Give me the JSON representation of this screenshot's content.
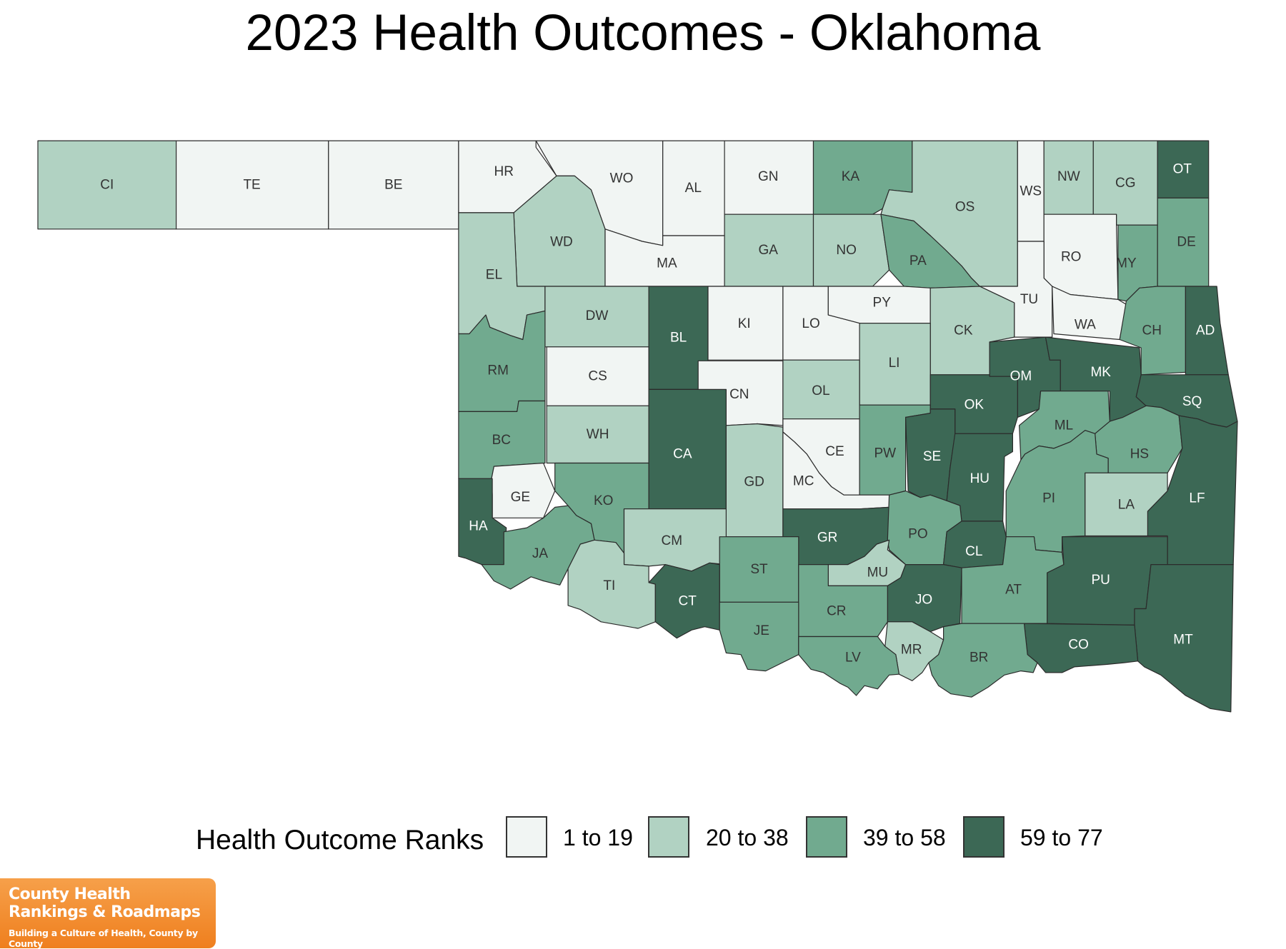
{
  "title": "2023 Health Outcomes - Oklahoma",
  "legend": {
    "title": "Health Outcome Ranks",
    "items": [
      {
        "label": "1 to 19",
        "color": "#f1f5f3"
      },
      {
        "label": "20 to 38",
        "color": "#b1d2c2"
      },
      {
        "label": "39 to 58",
        "color": "#71aa8f"
      },
      {
        "label": "59 to 77",
        "color": "#3c6855"
      }
    ]
  },
  "logo": {
    "line1": "County Health",
    "line2": "Rankings & Roadmaps",
    "tagline": "Building a Culture of Health, County by County"
  },
  "counties": [
    {
      "label": "CI",
      "tier": 1
    },
    {
      "label": "TE",
      "tier": 0
    },
    {
      "label": "BE",
      "tier": 0
    },
    {
      "label": "HR",
      "tier": 0
    },
    {
      "label": "WO",
      "tier": 0
    },
    {
      "label": "AL",
      "tier": 0
    },
    {
      "label": "GN",
      "tier": 0
    },
    {
      "label": "KA",
      "tier": 2
    },
    {
      "label": "OS",
      "tier": 1
    },
    {
      "label": "WS",
      "tier": 0
    },
    {
      "label": "NW",
      "tier": 1
    },
    {
      "label": "CG",
      "tier": 1
    },
    {
      "label": "OT",
      "tier": 3
    },
    {
      "label": "WD",
      "tier": 1
    },
    {
      "label": "MA",
      "tier": 0
    },
    {
      "label": "GA",
      "tier": 1
    },
    {
      "label": "NO",
      "tier": 1
    },
    {
      "label": "PA",
      "tier": 2
    },
    {
      "label": "RO",
      "tier": 0
    },
    {
      "label": "MY",
      "tier": 2
    },
    {
      "label": "DE",
      "tier": 2
    },
    {
      "label": "EL",
      "tier": 1
    },
    {
      "label": "DW",
      "tier": 1
    },
    {
      "label": "BL",
      "tier": 3
    },
    {
      "label": "KI",
      "tier": 0
    },
    {
      "label": "LO",
      "tier": 0
    },
    {
      "label": "PY",
      "tier": 0
    },
    {
      "label": "TU",
      "tier": 0
    },
    {
      "label": "WA",
      "tier": 0
    },
    {
      "label": "CH",
      "tier": 2
    },
    {
      "label": "AD",
      "tier": 3
    },
    {
      "label": "CK",
      "tier": 1
    },
    {
      "label": "LI",
      "tier": 1
    },
    {
      "label": "RM",
      "tier": 2
    },
    {
      "label": "CS",
      "tier": 0
    },
    {
      "label": "CN",
      "tier": 0
    },
    {
      "label": "OL",
      "tier": 1
    },
    {
      "label": "OM",
      "tier": 3
    },
    {
      "label": "MK",
      "tier": 3
    },
    {
      "label": "SQ",
      "tier": 3
    },
    {
      "label": "OK",
      "tier": 3
    },
    {
      "label": "BC",
      "tier": 2
    },
    {
      "label": "WH",
      "tier": 1
    },
    {
      "label": "CA",
      "tier": 3
    },
    {
      "label": "ML",
      "tier": 2
    },
    {
      "label": "GD",
      "tier": 1
    },
    {
      "label": "CE",
      "tier": 0
    },
    {
      "label": "PW",
      "tier": 2
    },
    {
      "label": "SE",
      "tier": 3
    },
    {
      "label": "HU",
      "tier": 3
    },
    {
      "label": "HS",
      "tier": 2
    },
    {
      "label": "MC",
      "tier": 0
    },
    {
      "label": "GE",
      "tier": 0
    },
    {
      "label": "KO",
      "tier": 2
    },
    {
      "label": "PI",
      "tier": 2
    },
    {
      "label": "LF",
      "tier": 3
    },
    {
      "label": "LA",
      "tier": 1
    },
    {
      "label": "HA",
      "tier": 3
    },
    {
      "label": "CM",
      "tier": 1
    },
    {
      "label": "GR",
      "tier": 3
    },
    {
      "label": "PO",
      "tier": 2
    },
    {
      "label": "JA",
      "tier": 2
    },
    {
      "label": "CL",
      "tier": 3
    },
    {
      "label": "ST",
      "tier": 2
    },
    {
      "label": "MU",
      "tier": 1
    },
    {
      "label": "TI",
      "tier": 1
    },
    {
      "label": "AT",
      "tier": 2
    },
    {
      "label": "PU",
      "tier": 3
    },
    {
      "label": "CT",
      "tier": 3
    },
    {
      "label": "JO",
      "tier": 3
    },
    {
      "label": "CR",
      "tier": 2
    },
    {
      "label": "JE",
      "tier": 2
    },
    {
      "label": "MT",
      "tier": 3
    },
    {
      "label": "CO",
      "tier": 3
    },
    {
      "label": "MR",
      "tier": 1
    },
    {
      "label": "BR",
      "tier": 2
    },
    {
      "label": "LV",
      "tier": 2
    }
  ]
}
